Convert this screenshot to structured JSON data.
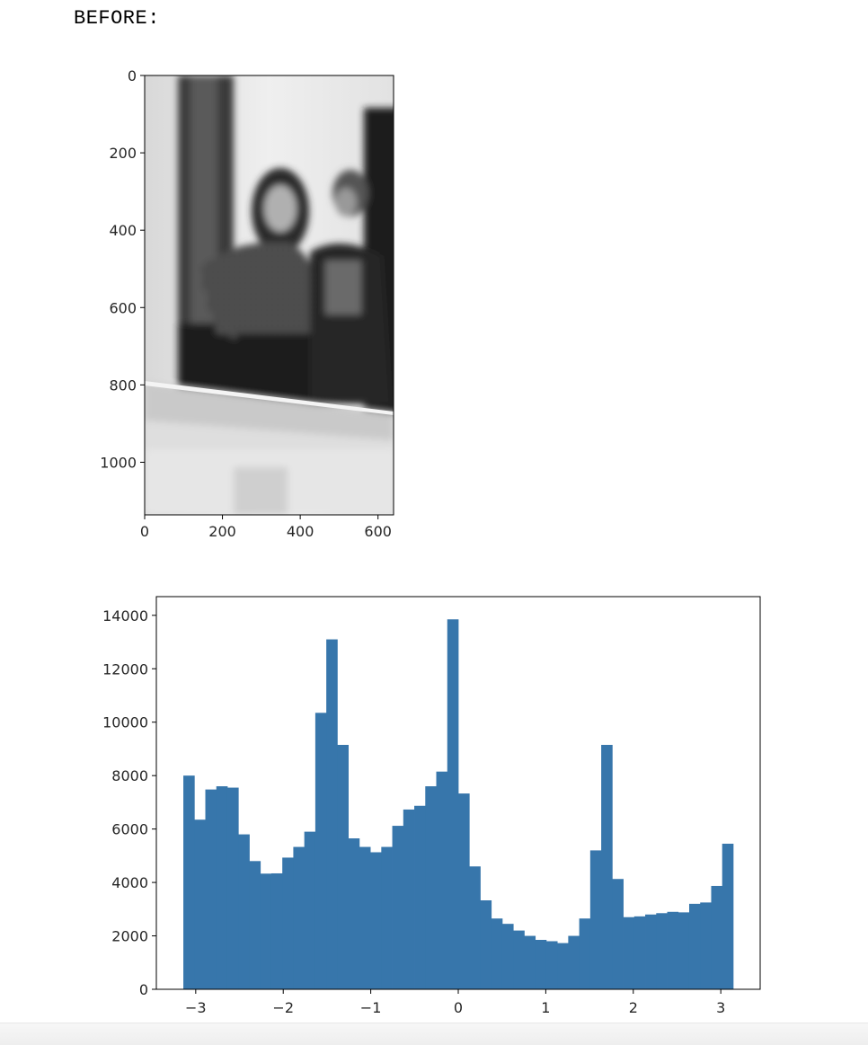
{
  "heading": "BEFORE:",
  "chart_data": [
    {
      "type": "image",
      "description_colors": {
        "grayscale": true
      },
      "xlim": [
        0,
        640
      ],
      "ylim": [
        1136,
        0
      ],
      "x_ticks": [
        0,
        200,
        400,
        600
      ],
      "x_tick_labels": [
        "0",
        "200",
        "400",
        "600"
      ],
      "y_ticks": [
        0,
        200,
        400,
        600,
        800,
        1000
      ],
      "y_tick_labels": [
        "0",
        "200",
        "400",
        "600",
        "800",
        "1000"
      ]
    },
    {
      "type": "bar",
      "color": "#3776ab",
      "bin_start": -3.14159,
      "bin_width": 0.12566,
      "values": [
        8000,
        6350,
        7480,
        7600,
        7550,
        5800,
        4800,
        4330,
        4340,
        4930,
        5330,
        5900,
        10350,
        13100,
        9150,
        5650,
        5330,
        5130,
        5330,
        6120,
        6730,
        6870,
        7600,
        8150,
        13850,
        7330,
        4600,
        3330,
        2650,
        2450,
        2200,
        2000,
        1850,
        1800,
        1730,
        2000,
        2650,
        5200,
        9150,
        4130,
        2700,
        2730,
        2800,
        2850,
        2900,
        2880,
        3200,
        3250,
        3870,
        5450
      ],
      "xlim": [
        -3.45,
        3.45
      ],
      "ylim": [
        0,
        14700
      ],
      "x_ticks": [
        -3,
        -2,
        -1,
        0,
        1,
        2,
        3
      ],
      "x_tick_labels": [
        "−3",
        "−2",
        "−1",
        "0",
        "1",
        "2",
        "3"
      ],
      "y_ticks": [
        0,
        2000,
        4000,
        6000,
        8000,
        10000,
        12000,
        14000
      ],
      "y_tick_labels": [
        "0",
        "2000",
        "4000",
        "6000",
        "8000",
        "10000",
        "12000",
        "14000"
      ]
    }
  ]
}
